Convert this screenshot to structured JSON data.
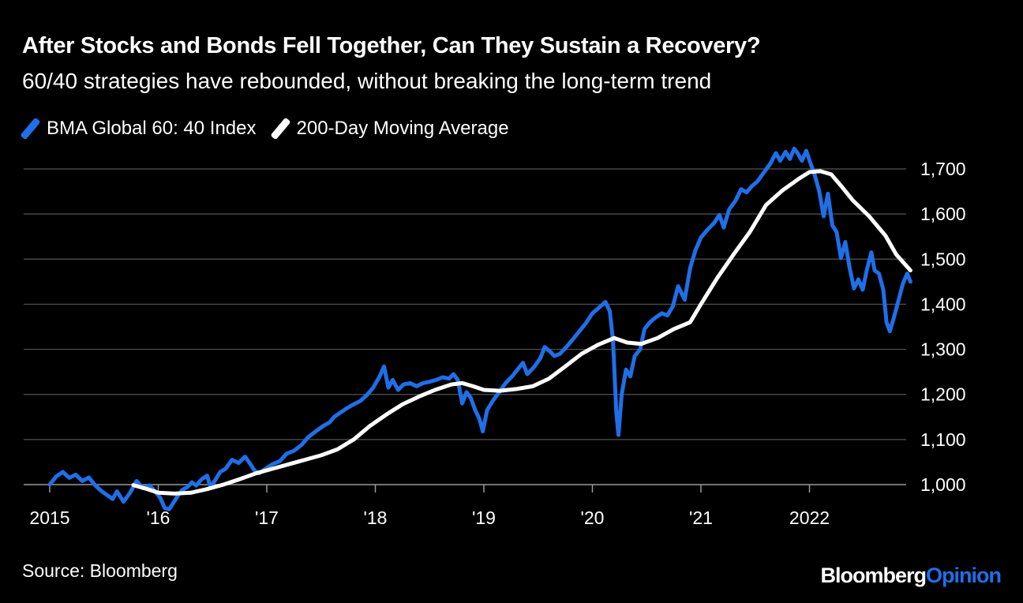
{
  "title": "After Stocks and Bonds Fell Together, Can They Sustain a Recovery?",
  "subtitle": "60/40 strategies have rebounded, without breaking the long-term trend",
  "source": "Source: Bloomberg",
  "brand": {
    "part1": "Bloomberg",
    "part2": "Opinion"
  },
  "colors": {
    "background": "#000000",
    "index": "#1f6fe8",
    "moving_average": "#ffffff",
    "grid": "#555555",
    "brand_accent": "#1f6fe8"
  },
  "chart_data": {
    "type": "line",
    "xlabel": "",
    "ylabel": "",
    "ylim": [
      1000,
      1700
    ],
    "yticks": [
      1000,
      1100,
      1200,
      1300,
      1400,
      1500,
      1600,
      1700
    ],
    "ytick_labels": [
      "1,000",
      "1,100",
      "1,200",
      "1,300",
      "1,400",
      "1,500",
      "1,600",
      "1,700"
    ],
    "xlim": [
      2015.0,
      2022.95
    ],
    "xticks": [
      2015,
      2016,
      2017,
      2018,
      2019,
      2020,
      2021,
      2022
    ],
    "xtick_labels": [
      "2015",
      "'16",
      "'17",
      "'18",
      "'19",
      "'20",
      "'21",
      "2022"
    ],
    "grid": "horizontal",
    "legend_position": "top-left",
    "series": [
      {
        "name": "BMA Global 60: 40 Index",
        "color": "#1f6fe8",
        "points": [
          [
            2015.0,
            1000
          ],
          [
            2015.06,
            1018
          ],
          [
            2015.12,
            1028
          ],
          [
            2015.18,
            1015
          ],
          [
            2015.24,
            1022
          ],
          [
            2015.3,
            1008
          ],
          [
            2015.36,
            1016
          ],
          [
            2015.42,
            998
          ],
          [
            2015.48,
            985
          ],
          [
            2015.54,
            975
          ],
          [
            2015.58,
            968
          ],
          [
            2015.62,
            985
          ],
          [
            2015.68,
            962
          ],
          [
            2015.74,
            982
          ],
          [
            2015.8,
            1008
          ],
          [
            2015.86,
            992
          ],
          [
            2015.92,
            998
          ],
          [
            2015.97,
            985
          ],
          [
            2016.02,
            970
          ],
          [
            2016.06,
            948
          ],
          [
            2016.1,
            945
          ],
          [
            2016.14,
            960
          ],
          [
            2016.18,
            975
          ],
          [
            2016.22,
            988
          ],
          [
            2016.27,
            995
          ],
          [
            2016.31,
            1005
          ],
          [
            2016.35,
            998
          ],
          [
            2016.4,
            1012
          ],
          [
            2016.45,
            1020
          ],
          [
            2016.48,
            995
          ],
          [
            2016.52,
            1008
          ],
          [
            2016.57,
            1028
          ],
          [
            2016.62,
            1035
          ],
          [
            2016.68,
            1055
          ],
          [
            2016.74,
            1048
          ],
          [
            2016.8,
            1062
          ],
          [
            2016.85,
            1045
          ],
          [
            2016.89,
            1030
          ],
          [
            2016.93,
            1025
          ],
          [
            2016.98,
            1034
          ],
          [
            2017.05,
            1045
          ],
          [
            2017.12,
            1052
          ],
          [
            2017.18,
            1068
          ],
          [
            2017.25,
            1075
          ],
          [
            2017.32,
            1088
          ],
          [
            2017.38,
            1105
          ],
          [
            2017.45,
            1118
          ],
          [
            2017.52,
            1130
          ],
          [
            2017.58,
            1138
          ],
          [
            2017.62,
            1150
          ],
          [
            2017.68,
            1160
          ],
          [
            2017.74,
            1170
          ],
          [
            2017.8,
            1178
          ],
          [
            2017.86,
            1185
          ],
          [
            2017.92,
            1198
          ],
          [
            2017.98,
            1215
          ],
          [
            2018.04,
            1240
          ],
          [
            2018.08,
            1262
          ],
          [
            2018.12,
            1215
          ],
          [
            2018.16,
            1232
          ],
          [
            2018.21,
            1210
          ],
          [
            2018.26,
            1222
          ],
          [
            2018.32,
            1225
          ],
          [
            2018.38,
            1218
          ],
          [
            2018.44,
            1225
          ],
          [
            2018.5,
            1228
          ],
          [
            2018.56,
            1232
          ],
          [
            2018.62,
            1238
          ],
          [
            2018.68,
            1235
          ],
          [
            2018.72,
            1245
          ],
          [
            2018.76,
            1232
          ],
          [
            2018.8,
            1180
          ],
          [
            2018.84,
            1205
          ],
          [
            2018.88,
            1192
          ],
          [
            2018.92,
            1165
          ],
          [
            2018.96,
            1145
          ],
          [
            2018.99,
            1118
          ],
          [
            2019.03,
            1165
          ],
          [
            2019.08,
            1185
          ],
          [
            2019.14,
            1205
          ],
          [
            2019.2,
            1225
          ],
          [
            2019.26,
            1240
          ],
          [
            2019.32,
            1258
          ],
          [
            2019.36,
            1270
          ],
          [
            2019.4,
            1245
          ],
          [
            2019.46,
            1260
          ],
          [
            2019.52,
            1280
          ],
          [
            2019.56,
            1305
          ],
          [
            2019.61,
            1295
          ],
          [
            2019.65,
            1285
          ],
          [
            2019.7,
            1290
          ],
          [
            2019.76,
            1305
          ],
          [
            2019.82,
            1322
          ],
          [
            2019.88,
            1340
          ],
          [
            2019.94,
            1358
          ],
          [
            2020.0,
            1380
          ],
          [
            2020.06,
            1392
          ],
          [
            2020.12,
            1405
          ],
          [
            2020.16,
            1385
          ],
          [
            2020.19,
            1320
          ],
          [
            2020.22,
            1160
          ],
          [
            2020.24,
            1110
          ],
          [
            2020.27,
            1200
          ],
          [
            2020.31,
            1255
          ],
          [
            2020.35,
            1240
          ],
          [
            2020.39,
            1285
          ],
          [
            2020.44,
            1300
          ],
          [
            2020.48,
            1345
          ],
          [
            2020.53,
            1360
          ],
          [
            2020.58,
            1370
          ],
          [
            2020.64,
            1380
          ],
          [
            2020.69,
            1375
          ],
          [
            2020.74,
            1395
          ],
          [
            2020.79,
            1440
          ],
          [
            2020.83,
            1420
          ],
          [
            2020.85,
            1410
          ],
          [
            2020.9,
            1480
          ],
          [
            2020.95,
            1520
          ],
          [
            2021.0,
            1548
          ],
          [
            2021.06,
            1565
          ],
          [
            2021.12,
            1580
          ],
          [
            2021.17,
            1598
          ],
          [
            2021.21,
            1570
          ],
          [
            2021.26,
            1610
          ],
          [
            2021.32,
            1630
          ],
          [
            2021.37,
            1655
          ],
          [
            2021.42,
            1648
          ],
          [
            2021.47,
            1662
          ],
          [
            2021.52,
            1672
          ],
          [
            2021.58,
            1692
          ],
          [
            2021.64,
            1712
          ],
          [
            2021.69,
            1735
          ],
          [
            2021.73,
            1718
          ],
          [
            2021.78,
            1738
          ],
          [
            2021.82,
            1722
          ],
          [
            2021.86,
            1745
          ],
          [
            2021.89,
            1735
          ],
          [
            2021.93,
            1718
          ],
          [
            2021.97,
            1740
          ],
          [
            2022.01,
            1712
          ],
          [
            2022.05,
            1685
          ],
          [
            2022.09,
            1650
          ],
          [
            2022.13,
            1595
          ],
          [
            2022.17,
            1645
          ],
          [
            2022.21,
            1575
          ],
          [
            2022.25,
            1560
          ],
          [
            2022.29,
            1502
          ],
          [
            2022.33,
            1538
          ],
          [
            2022.37,
            1480
          ],
          [
            2022.41,
            1435
          ],
          [
            2022.45,
            1455
          ],
          [
            2022.49,
            1432
          ],
          [
            2022.53,
            1478
          ],
          [
            2022.57,
            1515
          ],
          [
            2022.6,
            1475
          ],
          [
            2022.64,
            1468
          ],
          [
            2022.68,
            1432
          ],
          [
            2022.71,
            1360
          ],
          [
            2022.74,
            1340
          ],
          [
            2022.78,
            1372
          ],
          [
            2022.82,
            1408
          ],
          [
            2022.86,
            1445
          ],
          [
            2022.9,
            1468
          ],
          [
            2022.93,
            1450
          ]
        ]
      },
      {
        "name": "200-Day Moving Average",
        "color": "#ffffff",
        "points": [
          [
            2015.77,
            999
          ],
          [
            2015.9,
            990
          ],
          [
            2016.0,
            982
          ],
          [
            2016.15,
            980
          ],
          [
            2016.3,
            982
          ],
          [
            2016.45,
            990
          ],
          [
            2016.6,
            1000
          ],
          [
            2016.75,
            1012
          ],
          [
            2016.9,
            1025
          ],
          [
            2017.05,
            1035
          ],
          [
            2017.2,
            1045
          ],
          [
            2017.35,
            1055
          ],
          [
            2017.5,
            1065
          ],
          [
            2017.65,
            1078
          ],
          [
            2017.8,
            1100
          ],
          [
            2017.95,
            1130
          ],
          [
            2018.1,
            1155
          ],
          [
            2018.25,
            1178
          ],
          [
            2018.4,
            1195
          ],
          [
            2018.55,
            1210
          ],
          [
            2018.7,
            1222
          ],
          [
            2018.8,
            1225
          ],
          [
            2018.9,
            1218
          ],
          [
            2019.0,
            1210
          ],
          [
            2019.15,
            1208
          ],
          [
            2019.3,
            1212
          ],
          [
            2019.45,
            1218
          ],
          [
            2019.6,
            1235
          ],
          [
            2019.75,
            1262
          ],
          [
            2019.9,
            1290
          ],
          [
            2020.05,
            1310
          ],
          [
            2020.2,
            1325
          ],
          [
            2020.32,
            1315
          ],
          [
            2020.45,
            1312
          ],
          [
            2020.6,
            1325
          ],
          [
            2020.75,
            1345
          ],
          [
            2020.9,
            1360
          ],
          [
            2021.0,
            1400
          ],
          [
            2021.15,
            1458
          ],
          [
            2021.3,
            1510
          ],
          [
            2021.45,
            1560
          ],
          [
            2021.6,
            1620
          ],
          [
            2021.75,
            1652
          ],
          [
            2021.9,
            1678
          ],
          [
            2022.0,
            1693
          ],
          [
            2022.1,
            1695
          ],
          [
            2022.2,
            1688
          ],
          [
            2022.3,
            1660
          ],
          [
            2022.4,
            1630
          ],
          [
            2022.55,
            1595
          ],
          [
            2022.7,
            1552
          ],
          [
            2022.8,
            1510
          ],
          [
            2022.93,
            1475
          ]
        ]
      }
    ]
  }
}
